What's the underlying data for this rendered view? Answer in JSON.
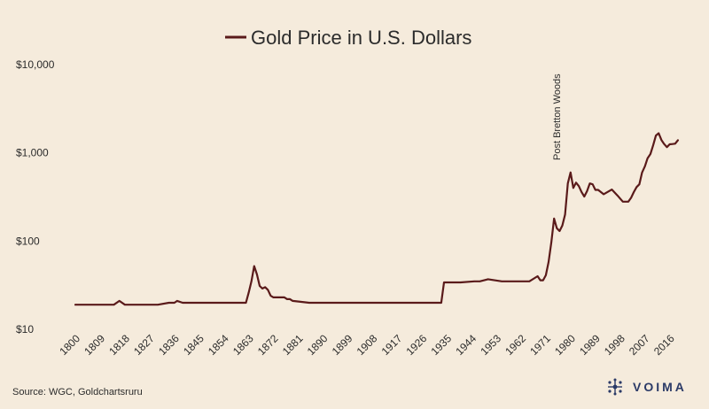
{
  "source": "Source: WGC, Goldchartsruru",
  "brand": {
    "name": "VOIMA",
    "color": "#2b3a67"
  },
  "colors": {
    "background": "#f5ebdc",
    "line": "#5a1a1a",
    "text": "#2b2b2b"
  },
  "chart_data": {
    "type": "line",
    "title": "Gold Price in U.S. Dollars",
    "legend_position": "top-center",
    "xlabel": "",
    "ylabel": "",
    "y_scale": "log",
    "xlim": [
      1800,
      2020
    ],
    "ylim": [
      10,
      10000
    ],
    "grid": false,
    "x_ticks": [
      1800,
      1809,
      1818,
      1827,
      1836,
      1845,
      1854,
      1863,
      1872,
      1881,
      1890,
      1899,
      1908,
      1917,
      1926,
      1935,
      1944,
      1953,
      1962,
      1971,
      1980,
      1989,
      1998,
      2007,
      2016
    ],
    "y_ticks": [
      10,
      100,
      1000,
      10000
    ],
    "y_tick_labels": [
      "$10",
      "$100",
      "$1,000",
      "$10,000"
    ],
    "annotations": [
      {
        "text": "Post Bretton Woods",
        "x": 1971
      }
    ],
    "series": [
      {
        "name": "Gold Price in U.S. Dollars",
        "x": [
          1800,
          1810,
          1814,
          1816,
          1818,
          1820,
          1825,
          1830,
          1834,
          1836,
          1837,
          1839,
          1845,
          1850,
          1855,
          1860,
          1861,
          1862,
          1863,
          1864,
          1865,
          1866,
          1867,
          1868,
          1869,
          1870,
          1871,
          1872,
          1873,
          1874,
          1875,
          1876,
          1877,
          1878,
          1879,
          1885,
          1900,
          1910,
          1920,
          1930,
          1933,
          1934,
          1940,
          1945,
          1947,
          1950,
          1955,
          1960,
          1965,
          1968,
          1969,
          1970,
          1971,
          1972,
          1973,
          1974,
          1975,
          1976,
          1977,
          1978,
          1979,
          1980,
          1981,
          1982,
          1983,
          1984,
          1985,
          1986,
          1987,
          1988,
          1989,
          1990,
          1992,
          1995,
          1997,
          1999,
          2001,
          2002,
          2003,
          2004,
          2005,
          2006,
          2007,
          2008,
          2009,
          2010,
          2011,
          2012,
          2013,
          2014,
          2015,
          2016,
          2017,
          2018,
          2019
        ],
        "y": [
          19,
          19,
          19,
          21,
          19,
          19,
          19,
          19,
          20,
          20,
          21,
          20,
          20,
          20,
          20,
          20,
          20,
          20,
          26,
          35,
          52,
          42,
          31,
          29,
          30,
          28,
          24,
          23,
          23,
          23,
          23,
          23,
          22,
          22,
          21,
          20,
          20,
          20,
          20,
          20,
          20,
          34,
          34,
          35,
          35,
          37,
          35,
          35,
          35,
          40,
          36,
          36,
          41,
          58,
          97,
          180,
          140,
          130,
          150,
          200,
          450,
          600,
          400,
          460,
          420,
          360,
          320,
          368,
          450,
          440,
          380,
          380,
          340,
          384,
          330,
          280,
          280,
          310,
          360,
          410,
          440,
          600,
          700,
          870,
          970,
          1220,
          1570,
          1670,
          1400,
          1260,
          1160,
          1250,
          1260,
          1270,
          1390
        ]
      }
    ]
  }
}
